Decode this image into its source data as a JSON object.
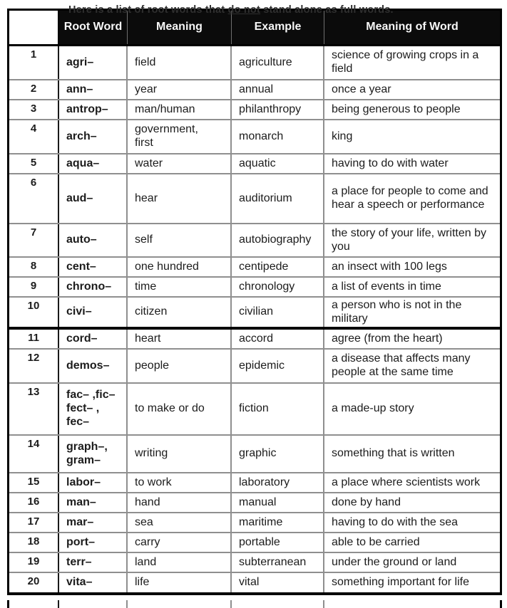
{
  "title": {
    "prefix": "Here is a list of root words that ",
    "underlined": "do not",
    "suffix": " stand alone as full words."
  },
  "table": {
    "columns": [
      "",
      "Root Word",
      "Meaning",
      "Example",
      "Meaning of Word"
    ],
    "rows": [
      {
        "num": "1",
        "root": "agri–",
        "meaning": "field",
        "example": "agriculture",
        "word_meaning": "science of growing crops in a field"
      },
      {
        "num": "2",
        "root": "ann–",
        "meaning": "year",
        "example": "annual",
        "word_meaning": "once a year"
      },
      {
        "num": "3",
        "root": "antrop–",
        "meaning": "man/human",
        "example": "philanthropy",
        "word_meaning": "being generous to people"
      },
      {
        "num": "4",
        "root": "arch–",
        "meaning": "government,\nfirst",
        "example": "monarch",
        "word_meaning": "king"
      },
      {
        "num": "5",
        "root": "aqua–",
        "meaning": "water",
        "example": "aquatic",
        "word_meaning": "having to do with water"
      },
      {
        "num": "6",
        "root": "aud–",
        "meaning": "hear",
        "example": "auditorium",
        "word_meaning": "a place for people to come and hear a speech or performance"
      },
      {
        "num": "7",
        "root": "auto–",
        "meaning": "self",
        "example": "autobiography",
        "word_meaning": "the story of your life, written by you"
      },
      {
        "num": "8",
        "root": "cent–",
        "meaning": "one hundred",
        "example": "centipede",
        "word_meaning": "an insect with 100 legs"
      },
      {
        "num": "9",
        "root": "chrono–",
        "meaning": "time",
        "example": "chronology",
        "word_meaning": "a list of events in time"
      },
      {
        "num": "10",
        "root": "civi–",
        "meaning": "citizen",
        "example": "civilian",
        "word_meaning": "a person who is not in the military"
      },
      {
        "num": "11",
        "root": "cord–",
        "meaning": "heart",
        "example": "accord",
        "word_meaning": "agree (from the heart)"
      },
      {
        "num": "12",
        "root": "demos–",
        "meaning": "people",
        "example": "epidemic",
        "word_meaning": "a disease that affects many people at the same time"
      },
      {
        "num": "13",
        "root": "fac– ,fic–\nfect– ,\nfec–",
        "meaning": "to make or do",
        "example": "fiction",
        "word_meaning": "a made-up story"
      },
      {
        "num": "14",
        "root": "graph–,\ngram–",
        "meaning": "writing",
        "example": "graphic",
        "word_meaning": "something that is written"
      },
      {
        "num": "15",
        "root": "labor–",
        "meaning": "to work",
        "example": "laboratory",
        "word_meaning": "a place where scientists work"
      },
      {
        "num": "16",
        "root": "man–",
        "meaning": "hand",
        "example": "manual",
        "word_meaning": "done by hand"
      },
      {
        "num": "17",
        "root": "mar–",
        "meaning": "sea",
        "example": "maritime",
        "word_meaning": "having to do with the sea"
      },
      {
        "num": "18",
        "root": "port–",
        "meaning": "carry",
        "example": "portable",
        "word_meaning": "able to be carried"
      },
      {
        "num": "19",
        "root": "terr–",
        "meaning": "land",
        "example": "subterranean",
        "word_meaning": "under the ground or land"
      },
      {
        "num": "20",
        "root": "vita–",
        "meaning": "life",
        "example": "vital",
        "word_meaning": "something important for life"
      }
    ]
  },
  "colors": {
    "header_bg": "#0b0b0b",
    "header_text": "#f7f7f7",
    "grid_line": "#8f8f8f",
    "outer_border": "#000000",
    "body_text": "#1c1c1c",
    "title_text": "#2f2f2f"
  }
}
